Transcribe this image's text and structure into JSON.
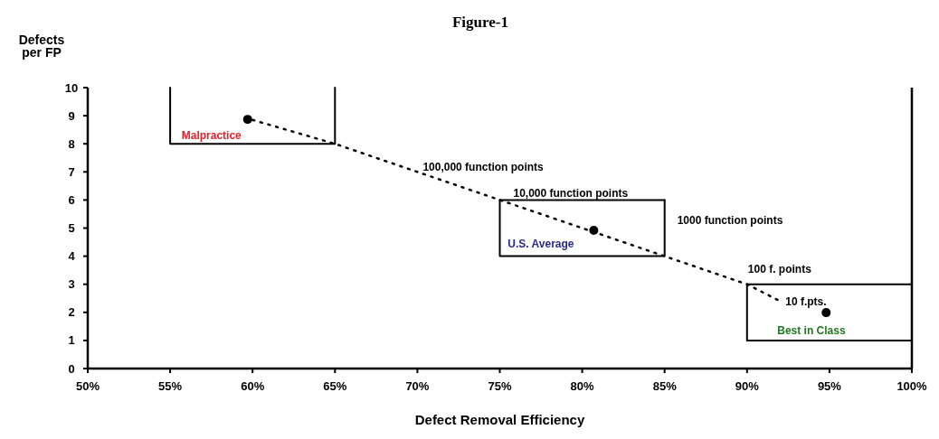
{
  "chart_data": {
    "type": "scatter",
    "title": "Figure-1",
    "xlabel": "Defect Removal Efficiency",
    "ylabel": "Defects per FP",
    "xlim": [
      50,
      100
    ],
    "ylim": [
      0,
      10
    ],
    "xticks": [
      {
        "value": 50,
        "label": "50%"
      },
      {
        "value": 55,
        "label": "55%"
      },
      {
        "value": 60,
        "label": "60%"
      },
      {
        "value": 65,
        "label": "65%"
      },
      {
        "value": 70,
        "label": "70%"
      },
      {
        "value": 75,
        "label": "75%"
      },
      {
        "value": 80,
        "label": "80%"
      },
      {
        "value": 85,
        "label": "85%"
      },
      {
        "value": 90,
        "label": "90%"
      },
      {
        "value": 95,
        "label": "95%"
      },
      {
        "value": 100,
        "label": "100%"
      }
    ],
    "yticks": [
      0,
      1,
      2,
      3,
      4,
      5,
      6,
      7,
      8,
      9,
      10
    ],
    "grid": false,
    "marker": "circle",
    "series": [
      {
        "type": "line",
        "color": "#000000",
        "line_style": "dotted",
        "marker": "none",
        "x": [
          60,
          65,
          70,
          75,
          80.5,
          85,
          90,
          92
        ],
        "values": [
          8.85,
          8.0,
          7.0,
          6.0,
          4.9,
          4.0,
          3.0,
          2.4
        ]
      },
      {
        "type": "line",
        "color": "#000000",
        "line_style": "solid",
        "marker": "none",
        "x": [
          55,
          55,
          65,
          65
        ],
        "values": [
          10,
          8,
          8,
          10
        ]
      },
      {
        "type": "line",
        "color": "#000000",
        "line_style": "solid",
        "marker": "none",
        "x": [
          75,
          75,
          85,
          85
        ],
        "values": [
          6,
          4,
          4,
          6
        ]
      },
      {
        "type": "line",
        "color": "#000000",
        "line_style": "solid",
        "marker": "none",
        "x": [
          75,
          85
        ],
        "values": [
          6,
          6
        ]
      },
      {
        "type": "line",
        "color": "#000000",
        "line_style": "solid",
        "marker": "none",
        "x": [
          90,
          90,
          100,
          100
        ],
        "values": [
          3,
          1,
          1,
          3
        ]
      },
      {
        "type": "line",
        "color": "#000000",
        "line_style": "solid",
        "marker": "none",
        "x": [
          90,
          100
        ],
        "values": [
          3,
          3
        ]
      },
      {
        "color": "#000000",
        "x": [
          59.7,
          80.7,
          94.8
        ],
        "values": [
          8.87,
          4.92,
          1.99
        ]
      }
    ],
    "annotations": [
      {
        "text": "Malpractice",
        "x": 59.7,
        "y": 8.87
      },
      {
        "text": "U.S. Average",
        "x": 80.7,
        "y": 4.92
      },
      {
        "text": "Best in Class",
        "x": 94.8,
        "y": 1.99
      },
      {
        "text": "100,000 function points",
        "x": 70,
        "y": 7.0
      },
      {
        "text": "10,000 function points",
        "x": 75,
        "y": 6.0
      },
      {
        "text": "1000 function points",
        "x": 85,
        "y": 5.0
      },
      {
        "text": "100 f. points",
        "x": 90,
        "y": 3.0
      },
      {
        "text": "10 f.pts.",
        "x": 92,
        "y": 2.4
      }
    ]
  }
}
